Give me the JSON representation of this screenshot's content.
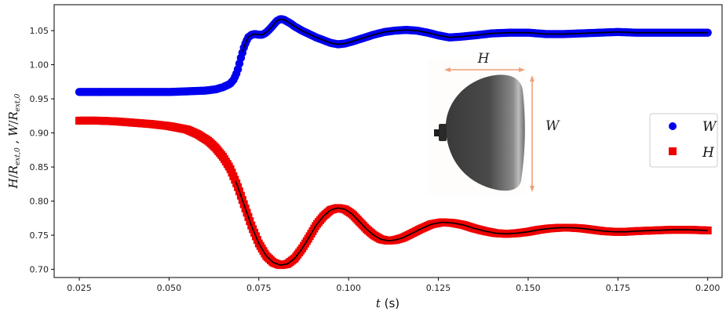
{
  "chart_data": {
    "type": "scatter",
    "xlabel": "t (s)",
    "ylabel": "H/R_ext,0 , W/R_ext,0",
    "xlim": [
      0.018,
      0.204
    ],
    "ylim": [
      0.688,
      1.088
    ],
    "xticks": [
      "0.025",
      "0.050",
      "0.075",
      "0.100",
      "0.125",
      "0.150",
      "0.175",
      "0.200"
    ],
    "yticks": [
      "0.70",
      "0.75",
      "0.80",
      "0.85",
      "0.90",
      "0.95",
      "1.00",
      "1.05"
    ],
    "legend_position": "center-right",
    "grid": false,
    "series": [
      {
        "name": "W",
        "marker": "circle",
        "color": "#0000ee",
        "x": [
          0.025,
          0.03,
          0.04,
          0.05,
          0.055,
          0.06,
          0.063,
          0.065,
          0.067,
          0.068,
          0.069,
          0.07,
          0.071,
          0.072,
          0.073,
          0.074,
          0.075,
          0.076,
          0.077,
          0.078,
          0.079,
          0.08,
          0.081,
          0.082,
          0.083,
          0.084,
          0.085,
          0.087,
          0.089,
          0.091,
          0.093,
          0.095,
          0.097,
          0.099,
          0.101,
          0.104,
          0.107,
          0.11,
          0.113,
          0.116,
          0.119,
          0.122,
          0.125,
          0.128,
          0.131,
          0.135,
          0.14,
          0.145,
          0.15,
          0.155,
          0.16,
          0.165,
          0.17,
          0.175,
          0.18,
          0.185,
          0.19,
          0.195,
          0.2
        ],
        "y": [
          0.96,
          0.96,
          0.96,
          0.96,
          0.961,
          0.962,
          0.964,
          0.967,
          0.972,
          0.978,
          0.99,
          1.01,
          1.028,
          1.04,
          1.044,
          1.045,
          1.044,
          1.044,
          1.047,
          1.052,
          1.058,
          1.064,
          1.067,
          1.066,
          1.063,
          1.06,
          1.056,
          1.05,
          1.045,
          1.04,
          1.036,
          1.032,
          1.03,
          1.031,
          1.034,
          1.039,
          1.044,
          1.048,
          1.05,
          1.051,
          1.05,
          1.047,
          1.043,
          1.04,
          1.041,
          1.043,
          1.046,
          1.047,
          1.047,
          1.045,
          1.045,
          1.046,
          1.047,
          1.048,
          1.047,
          1.047,
          1.047,
          1.047,
          1.047
        ]
      },
      {
        "name": "H",
        "marker": "square",
        "color": "#ee0000",
        "x": [
          0.025,
          0.03,
          0.035,
          0.04,
          0.045,
          0.05,
          0.055,
          0.058,
          0.061,
          0.063,
          0.065,
          0.067,
          0.069,
          0.071,
          0.073,
          0.075,
          0.077,
          0.079,
          0.081,
          0.083,
          0.085,
          0.087,
          0.089,
          0.091,
          0.093,
          0.095,
          0.097,
          0.099,
          0.101,
          0.103,
          0.105,
          0.107,
          0.109,
          0.111,
          0.113,
          0.115,
          0.117,
          0.12,
          0.123,
          0.126,
          0.129,
          0.132,
          0.135,
          0.138,
          0.141,
          0.144,
          0.147,
          0.15,
          0.153,
          0.156,
          0.159,
          0.162,
          0.165,
          0.168,
          0.171,
          0.174,
          0.177,
          0.18,
          0.185,
          0.19,
          0.195,
          0.2
        ],
        "y": [
          0.918,
          0.918,
          0.917,
          0.915,
          0.913,
          0.91,
          0.905,
          0.898,
          0.888,
          0.878,
          0.865,
          0.848,
          0.823,
          0.793,
          0.763,
          0.738,
          0.72,
          0.71,
          0.706,
          0.708,
          0.716,
          0.73,
          0.747,
          0.765,
          0.778,
          0.787,
          0.79,
          0.788,
          0.781,
          0.77,
          0.759,
          0.75,
          0.744,
          0.742,
          0.743,
          0.746,
          0.751,
          0.759,
          0.766,
          0.769,
          0.768,
          0.765,
          0.76,
          0.756,
          0.753,
          0.752,
          0.753,
          0.755,
          0.758,
          0.76,
          0.761,
          0.761,
          0.76,
          0.758,
          0.756,
          0.755,
          0.755,
          0.756,
          0.757,
          0.758,
          0.758,
          0.757
        ]
      }
    ],
    "fit_line": {
      "color": "#000000",
      "w_xrange": [
        0.0705,
        0.2
      ],
      "h_xrange": [
        0.0685,
        0.2
      ]
    },
    "inset": {
      "label_h": "H",
      "label_w": "W",
      "arrow_color": "#f0a07a"
    }
  }
}
